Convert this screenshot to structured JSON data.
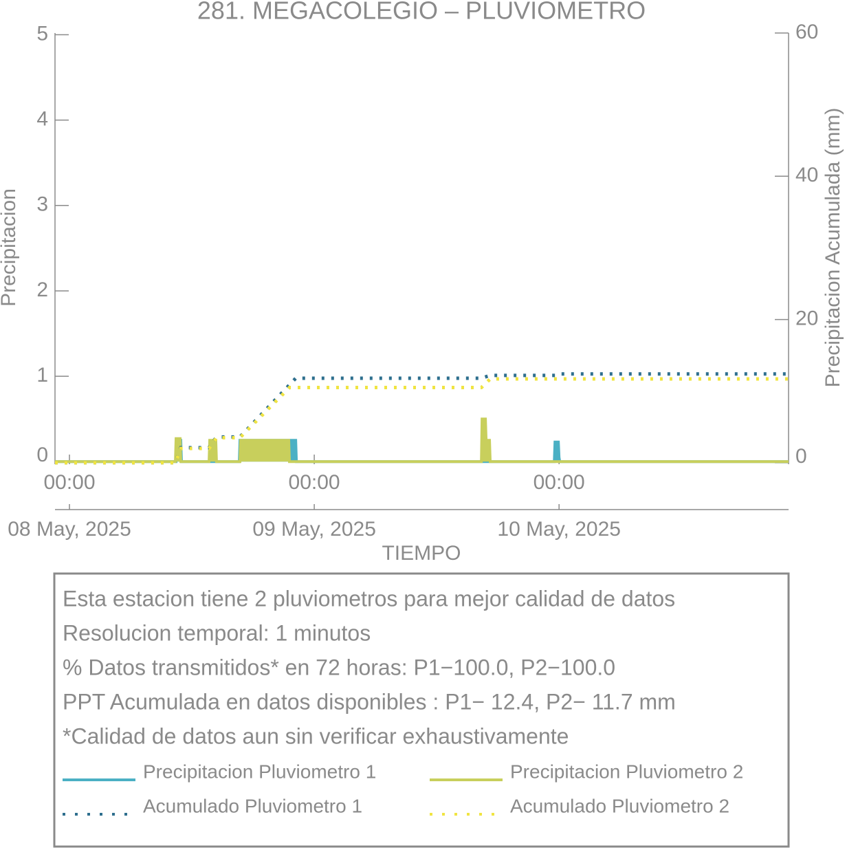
{
  "chart_data": {
    "type": "line",
    "title": "281. MEGACOLEGIO – PLUVIOMETRO",
    "x_label": "TIEMPO",
    "y_label": "Precipitacion",
    "y2_label": "Precipitacion Acumulada (mm)",
    "xlim": [
      "2025-05-07T22:35",
      "2025-05-10T22:30"
    ],
    "xticks": [
      {
        "value": "2025-05-08T00:00",
        "label": "00:00",
        "date_label": "08 May, 2025"
      },
      {
        "value": "2025-05-09T00:00",
        "label": "00:00",
        "date_label": "09 May, 2025"
      },
      {
        "value": "2025-05-10T00:00",
        "label": "00:00",
        "date_label": "10 May, 2025"
      }
    ],
    "ylim": [
      -0.03,
      5.02
    ],
    "yticks": [
      0,
      1,
      2,
      3,
      4,
      5
    ],
    "y2lim": [
      -0.2,
      60
    ],
    "y2ticks": [
      0,
      20,
      40,
      60
    ],
    "series": [
      {
        "name": "Precipitacion Pluviometro 1",
        "color": "#4bb0c4",
        "style": "solid",
        "x": [
          "2025-05-07T22:35",
          "2025-05-08T10:27",
          "2025-05-08T10:31",
          "2025-05-08T10:55",
          "2025-05-08T10:59",
          "2025-05-08T16:39",
          "2025-05-08T16:43",
          "2025-05-08T22:11",
          "2025-05-08T22:15",
          "2025-05-09T23:32",
          "2025-05-09T23:36",
          "2025-05-09T23:56",
          "2025-05-10T00:00",
          "2025-05-10T00:04",
          "2025-05-10T22:30"
        ],
        "values": [
          0,
          0,
          0.25,
          0.25,
          0,
          0,
          0.25,
          0.25,
          0,
          0,
          0.23,
          0.23,
          0.05,
          0,
          0
        ]
      },
      {
        "name": "Precipitacion Pluviometro 2",
        "color": "#c8cf5c",
        "style": "solid",
        "x": [
          "2025-05-07T22:35",
          "2025-05-08T10:23",
          "2025-05-08T10:27",
          "2025-05-08T10:51",
          "2025-05-08T10:55",
          "2025-05-08T13:41",
          "2025-05-08T13:45",
          "2025-05-08T14:21",
          "2025-05-08T14:25",
          "2025-05-08T16:43",
          "2025-05-08T16:47",
          "2025-05-08T21:30",
          "2025-05-08T21:34",
          "2025-05-09T16:23",
          "2025-05-09T16:27",
          "2025-05-09T16:47",
          "2025-05-09T16:51",
          "2025-05-09T17:11",
          "2025-05-09T17:15",
          "2025-05-10T22:30"
        ],
        "values": [
          0,
          0,
          0.27,
          0.27,
          0,
          0,
          0.25,
          0.25,
          0,
          0,
          0.25,
          0.25,
          0,
          0,
          0.5,
          0.5,
          0.25,
          0.25,
          0,
          0
        ]
      },
      {
        "name": "Acumulado Pluviometro 1",
        "color": "#2e6f8e",
        "style": "dotted",
        "axis": "y2",
        "x": [
          "2025-05-07T22:35",
          "2025-05-08T10:23",
          "2025-05-08T10:55",
          "2025-05-08T13:41",
          "2025-05-08T14:25",
          "2025-05-08T16:43",
          "2025-05-08T22:11",
          "2025-05-09T16:23",
          "2025-05-09T17:15",
          "2025-05-09T23:36",
          "2025-05-10T00:00",
          "2025-05-10T22:30"
        ],
        "values": [
          0,
          0,
          2.1,
          2.1,
          3.6,
          3.6,
          11.8,
          11.8,
          12.2,
          12.2,
          12.4,
          12.4
        ]
      },
      {
        "name": "Acumulado Pluviometro 2",
        "color": "#f0e442",
        "style": "dotted",
        "axis": "y2",
        "x": [
          "2025-05-07T22:35",
          "2025-05-08T10:23",
          "2025-05-08T10:55",
          "2025-05-08T13:41",
          "2025-05-08T14:25",
          "2025-05-08T16:43",
          "2025-05-08T21:34",
          "2025-05-09T16:23",
          "2025-05-09T17:15",
          "2025-05-10T22:30"
        ],
        "values": [
          0,
          0,
          2.0,
          2.0,
          3.5,
          3.5,
          10.5,
          10.5,
          11.7,
          11.7
        ]
      }
    ],
    "annotations": [
      "Esta estacion tiene 2 pluviometros para mejor calidad de datos",
      "Resolucion temporal: 1 minutos",
      "% Datos transmitidos* en 72 horas: P1−100.0, P2−100.0",
      "PPT Acumulada en datos disponibles : P1− 12.4, P2− 11.7 mm",
      "*Calidad de datos aun sin verificar exhaustivamente"
    ]
  }
}
